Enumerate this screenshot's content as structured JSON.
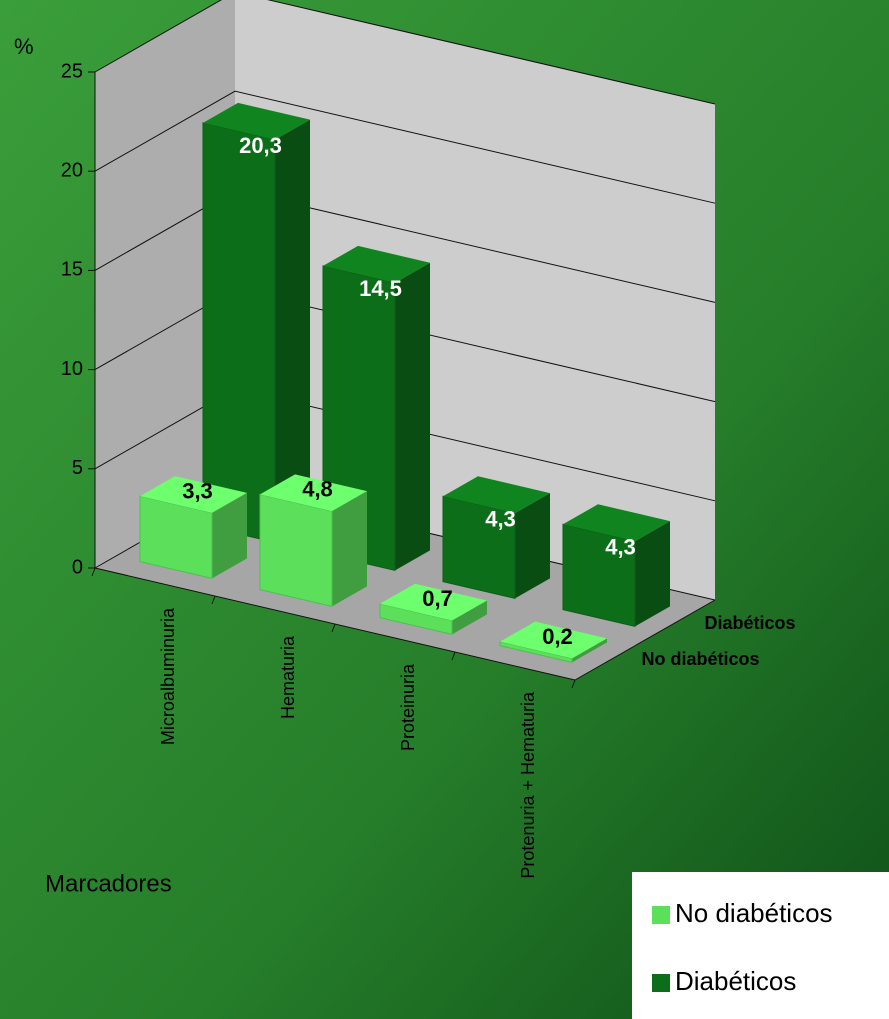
{
  "chart_data": {
    "type": "bar3d",
    "y_axis_label": "%",
    "x_axis_label": "Marcadores",
    "categories": [
      "Microalbuminuria",
      "Hematuria",
      "Proteinuria",
      "Protenuria + Hematuria"
    ],
    "series": [
      {
        "name": "No diabéticos",
        "color": "#5ce05c",
        "values": [
          3.3,
          4.8,
          0.7,
          0.2
        ],
        "value_labels": [
          "3,3",
          "4,8",
          "0,7",
          "0,2"
        ]
      },
      {
        "name": "Diabéticos",
        "color": "#0d6e1a",
        "values": [
          20.3,
          14.5,
          4.3,
          4.3
        ],
        "value_labels": [
          "20,3",
          "14,5",
          "4,3",
          "4,3"
        ]
      }
    ],
    "ylim": [
      0,
      25
    ],
    "yticks": [
      0,
      5,
      10,
      15,
      20,
      25
    ],
    "grid": true
  }
}
